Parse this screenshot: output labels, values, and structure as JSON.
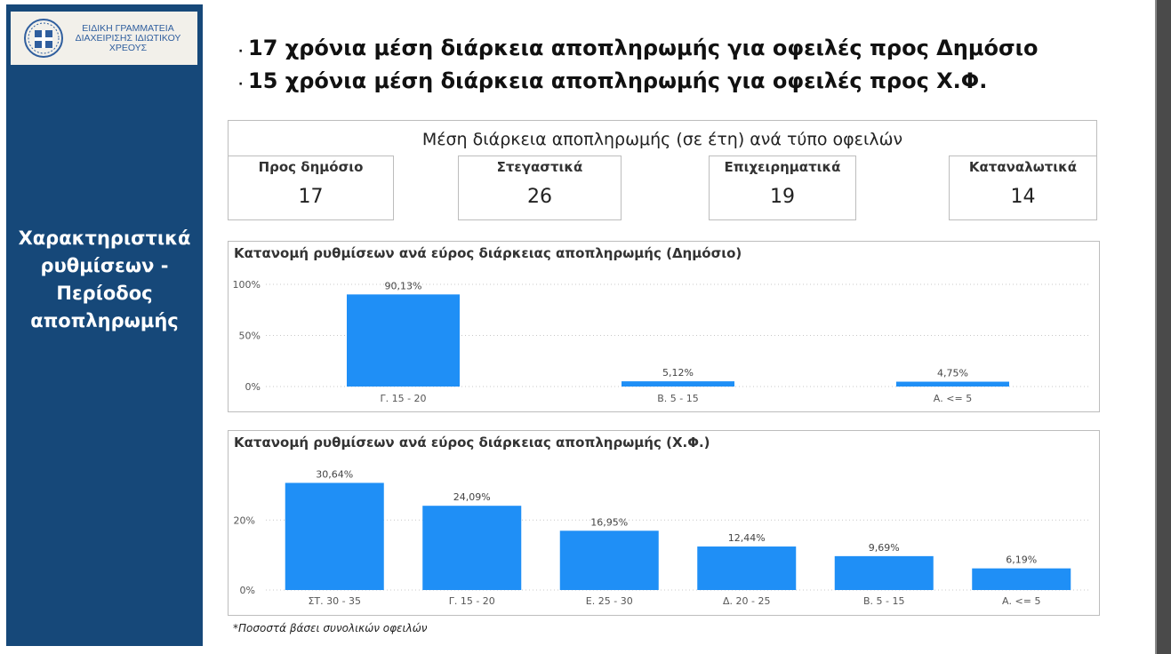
{
  "sidebar": {
    "logo_lines": [
      "ΕΙΔΙΚΗ ΓΡΑΜΜΑΤΕΙΑ",
      "ΔΙΑΧΕΙΡΙΣΗΣ ΙΔΙΩΤΙΚΟΥ",
      "ΧΡΕΟΥΣ"
    ],
    "title_lines": [
      "Χαρακτηριστικά",
      "ρυθμίσεων -",
      "Περίοδος",
      "αποπληρωμής"
    ],
    "background": "#164879"
  },
  "bullets": [
    "17 χρόνια μέση διάρκεια αποπληρωμής για οφειλές προς Δημόσιο",
    "15 χρόνια μέση διάρκεια αποπληρωμής για οφειλές προς Χ.Φ."
  ],
  "kpi": {
    "title": "Μέση διάρκεια αποπληρωμής (σε έτη) ανά τύπο οφειλών",
    "cards": [
      {
        "label": "Προς δημόσιο",
        "value": "17"
      },
      {
        "label": "Στεγαστικά",
        "value": "26"
      },
      {
        "label": "Επιχειρηματικά",
        "value": "19"
      },
      {
        "label": "Καταναλωτικά",
        "value": "14"
      }
    ]
  },
  "chart_data": [
    {
      "type": "bar",
      "title": "Κατανομή ρυθμίσεων ανά εύρος διάρκειας αποπληρωμής (Δημόσιο)",
      "categories": [
        "Γ. 15 - 20",
        "Β. 5 - 15",
        "Α. <= 5"
      ],
      "values": [
        90.13,
        5.12,
        4.75
      ],
      "data_labels": [
        "90,13%",
        "5,12%",
        "4,75%"
      ],
      "yticks": [
        {
          "value": 100,
          "label": "100%"
        },
        {
          "value": 50,
          "label": "50%"
        },
        {
          "value": 0,
          "label": "0%"
        }
      ],
      "ylim": [
        0,
        100
      ],
      "grid": true,
      "bar_color": "#1f8ff6"
    },
    {
      "type": "bar",
      "title": "Κατανομή ρυθμίσεων ανά εύρος διάρκειας αποπληρωμής (Χ.Φ.)",
      "categories": [
        "ΣΤ. 30 - 35",
        "Γ. 15 - 20",
        "Ε. 25 - 30",
        "Δ. 20 - 25",
        "Β. 5 - 15",
        "Α. <= 5"
      ],
      "values": [
        30.64,
        24.09,
        16.95,
        12.44,
        9.69,
        6.19
      ],
      "data_labels": [
        "30,64%",
        "24,09%",
        "16,95%",
        "12,44%",
        "9,69%",
        "6,19%"
      ],
      "yticks": [
        {
          "value": 20,
          "label": "20%"
        },
        {
          "value": 0,
          "label": "0%"
        }
      ],
      "ylim": [
        0,
        31
      ],
      "grid": true,
      "bar_color": "#1f8ff6"
    }
  ],
  "footnote": "*Ποσοστά βάσει συνολικών οφειλών"
}
